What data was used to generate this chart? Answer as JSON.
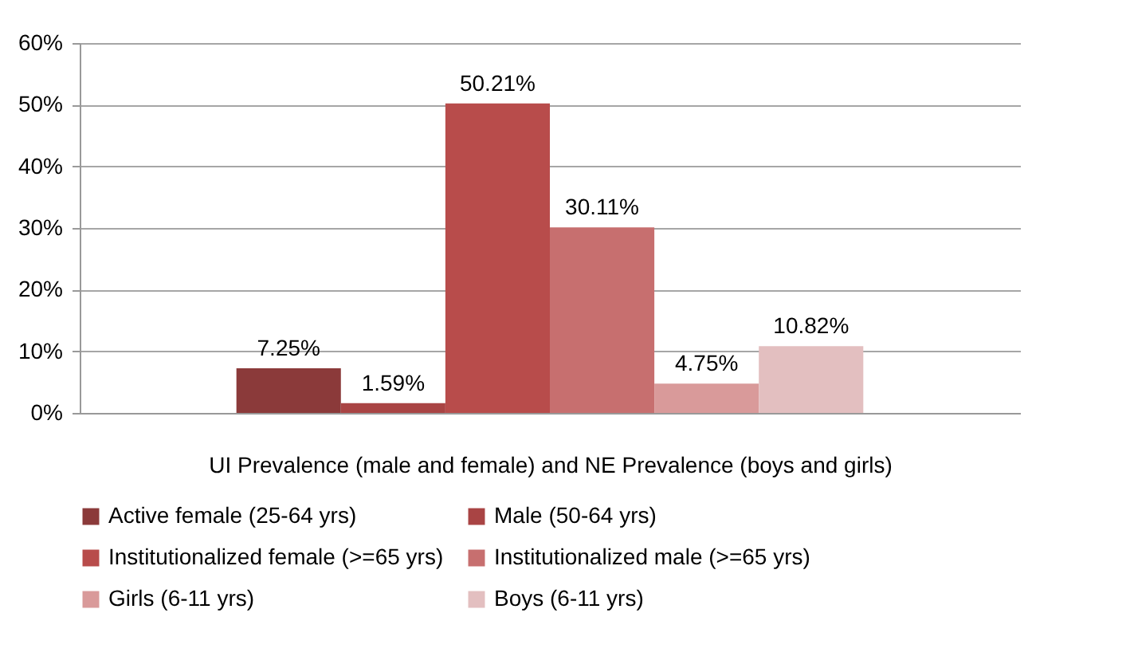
{
  "chart_data": {
    "type": "bar",
    "xlabel": "UI Prevalence (male and female) and NE Prevalence (boys and girls)",
    "categories": [
      null
    ],
    "series": [
      {
        "name": "Active female (25-64 yrs)",
        "color": "#8b3a3a",
        "values": [
          7.25
        ],
        "value_labels": [
          "7.25%"
        ]
      },
      {
        "name": "Male (50-64 yrs)",
        "color": "#a94444",
        "values": [
          1.59
        ],
        "value_labels": [
          "1.59%"
        ]
      },
      {
        "name": "Institutionalized  female (>=65 yrs)",
        "color": "#b84c4b",
        "values": [
          50.21
        ],
        "value_labels": [
          "50.21%"
        ]
      },
      {
        "name": "Institutionalized  male (>=65 yrs)",
        "color": "#c76f6f",
        "values": [
          30.11
        ],
        "value_labels": [
          "30.11%"
        ]
      },
      {
        "name": "Girls (6-11 yrs)",
        "color": "#d99a9a",
        "values": [
          4.75
        ],
        "value_labels": [
          "4.75%"
        ]
      },
      {
        "name": "Boys (6-11 yrs)",
        "color": "#e3bfc0",
        "values": [
          10.82
        ],
        "value_labels": [
          "10.82%"
        ]
      }
    ],
    "ylim": [
      0,
      60
    ],
    "yticks": [
      {
        "value": 0,
        "label": "0%"
      },
      {
        "value": 10,
        "label": "10%"
      },
      {
        "value": 20,
        "label": "20%"
      },
      {
        "value": 30,
        "label": "30%"
      },
      {
        "value": 40,
        "label": "40%"
      },
      {
        "value": 50,
        "label": "50%"
      },
      {
        "value": 60,
        "label": "60%"
      }
    ],
    "grid": "y",
    "legend": "bottom"
  }
}
